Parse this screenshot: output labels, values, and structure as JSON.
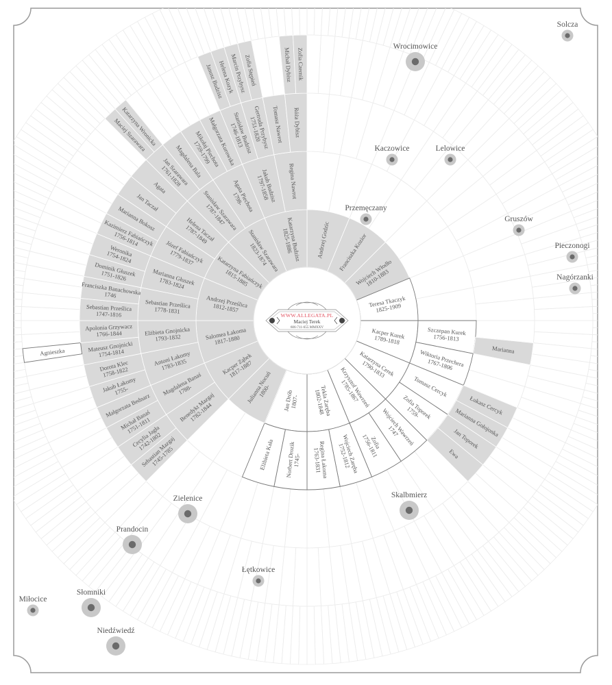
{
  "colors": {
    "gray_fill": "#d9d9d9",
    "white_fill": "#ffffff",
    "white_stroke": "#777777",
    "empty_stroke": "#ececec",
    "text": "#555555",
    "logo_red": "#e0505e",
    "place_halo": "#c8c8c8",
    "place_dot": "#6b6b6b"
  },
  "logo": {
    "url": "WWW.ALLEGATA.PL",
    "name": "Maciej Terek",
    "phone": "606-711-655 MMXXV"
  },
  "fan": {
    "ring1": [
      {
        "name": "Andrzej Godzic",
        "dates": "",
        "shade": "gray"
      },
      {
        "name": "Franciszka Kozior",
        "dates": "",
        "shade": "gray"
      },
      {
        "name": "Wojciech Włodło",
        "dates": "1810-1883",
        "shade": "gray"
      },
      {
        "name": "Teresa Tkaczyk",
        "dates": "1825-1909",
        "shade": "white"
      },
      {
        "name": "Kacper Kurek",
        "dates": "1789-1818",
        "shade": "white",
        "parents": [
          {
            "name": "Szczepan Kurek",
            "dates": "1756-1813",
            "shade": "white",
            "parents": [
              null,
              {
                "name": "Marianna",
                "dates": "",
                "shade": "gray"
              }
            ]
          },
          {
            "name": "Wiktoria Przechera",
            "dates": "1767-1806",
            "shade": "white"
          }
        ]
      },
      {
        "name": "Katarzyna Cerek",
        "dates": "1790-1833",
        "shade": "white",
        "parents": [
          {
            "name": "Tomasz Cercyk",
            "dates": "",
            "shade": "white",
            "parents": [
              {
                "name": "Łukasz Cercyk",
                "dates": "",
                "shade": "gray"
              },
              {
                "name": "Marianna Gołojonka",
                "dates": "",
                "shade": "gray"
              }
            ]
          },
          {
            "name": "Zofia Toporek",
            "dates": "1759-",
            "shade": "white",
            "parents": [
              {
                "name": "Jan Toporek",
                "dates": "",
                "shade": "gray"
              },
              {
                "name": "Ewa",
                "dates": "",
                "shade": "gray"
              }
            ]
          }
        ]
      },
      {
        "name": "Krzysztof Wawrzeń",
        "dates": "1785-1867",
        "shade": "white",
        "parents": [
          {
            "name": "Wojciech Wawrzeń",
            "dates": "1747",
            "shade": "white"
          },
          {
            "name": "Zofia",
            "dates": "1756-1811",
            "shade": "white"
          }
        ]
      },
      {
        "name": "Tekla Zaręba",
        "dates": "1802-1848",
        "shade": "white",
        "parents": [
          {
            "name": "Wojciech Zaręba",
            "dates": "1752-1812",
            "shade": "white"
          },
          {
            "name": "Regina Łakoma",
            "dates": "1763-1831",
            "shade": "white"
          }
        ]
      },
      {
        "name": "Jan Drób",
        "dates": "1807-",
        "shade": "white",
        "parents": [
          {
            "name": "Norbert Drozik",
            "dates": "1745-",
            "shade": "white"
          },
          {
            "name": "Elżbieta Kała",
            "dates": "",
            "shade": "white"
          }
        ]
      },
      {
        "name": "Julianna Nocuń",
        "dates": "1800-",
        "shade": "gray"
      },
      {
        "name": "Kacper Ząbek",
        "dates": "1817-1887",
        "shade": "gray",
        "parents": [
          {
            "name": "Benedykt Mazgaj",
            "dates": "1782-1844",
            "shade": "gray",
            "parents": [
              {
                "name": "Sebastian Mazgaj",
                "dates": "1745-1785",
                "shade": "gray"
              },
              {
                "name": "Cecylia Jagła",
                "dates": "1742-1802",
                "shade": "gray"
              }
            ]
          },
          {
            "name": "Magdalena Banaś",
            "dates": "1788-",
            "shade": "gray",
            "parents": [
              {
                "name": "Michał Banaś",
                "dates": "1751-1811",
                "shade": "gray"
              },
              {
                "name": "Małgorzata Bednarz",
                "dates": "",
                "shade": "gray"
              }
            ]
          }
        ]
      },
      {
        "name": "Salomea Łakoma",
        "dates": "1817-1880",
        "shade": "gray",
        "parents": [
          {
            "name": "Antoni Łakomy",
            "dates": "1783-1835",
            "shade": "gray",
            "parents": [
              {
                "name": "Jakub Łakomy",
                "dates": "1755-",
                "shade": "gray"
              },
              {
                "name": "Dorota Klec",
                "dates": "1758-1822",
                "shade": "gray"
              }
            ]
          },
          {
            "name": "Elżbieta Gnojnicka",
            "dates": "1793-1832",
            "shade": "gray",
            "parents": [
              {
                "name": "Mateusz Gnojnicki",
                "dates": "1754-1814",
                "shade": "gray",
                "parents": [
                  null,
                  {
                    "name": "Agnieszka",
                    "dates": "",
                    "shade": "white"
                  }
                ]
              },
              {
                "name": "Apolonia Grzywacz",
                "dates": "1766-1844",
                "shade": "gray"
              }
            ]
          }
        ]
      },
      {
        "name": "Andrzej Prześlica",
        "dates": "1812-1857",
        "shade": "gray",
        "parents": [
          {
            "name": "Sebastian Prześlica",
            "dates": "1778-1831",
            "shade": "gray",
            "parents": [
              {
                "name": "Sebastian Prześlica",
                "dates": "1747-1816",
                "shade": "gray"
              },
              {
                "name": "Franciszka Banachowska",
                "dates": "1746",
                "shade": "gray"
              }
            ]
          },
          {
            "name": "Marianna Głuszek",
            "dates": "1783-1824",
            "shade": "gray",
            "parents": [
              {
                "name": "Dominik Głuszek",
                "dates": "1751-1826",
                "shade": "gray"
              },
              {
                "name": "Weronika",
                "dates": "1754-1824",
                "shade": "gray"
              }
            ]
          }
        ]
      },
      {
        "name": "Katarzyna Fabiańczyk",
        "dates": "1815-1885",
        "shade": "gray",
        "parents": [
          {
            "name": "Józef Fabiańczyk",
            "dates": "1779-1837",
            "shade": "gray",
            "parents": [
              {
                "name": "Kazimierz Fabiańczyk",
                "dates": "1756-1814",
                "shade": "gray"
              },
              {
                "name": "Marianna Bokosz",
                "dates": "",
                "shade": "gray"
              }
            ]
          },
          {
            "name": "Helena Taczał",
            "dates": "1787-1849",
            "shade": "gray",
            "parents": [
              {
                "name": "Jan Taczał",
                "dates": "",
                "shade": "gray"
              },
              {
                "name": "Agata",
                "dates": "",
                "shade": "gray"
              }
            ]
          }
        ]
      },
      {
        "name": "Stanisław Szarawara",
        "dates": "1823-1874",
        "shade": "gray",
        "parents": [
          {
            "name": "Stanisław Szarawara",
            "dates": "1787-1847",
            "shade": "gray",
            "parents": [
              {
                "name": "Jan Szarawara",
                "dates": "1761-1828",
                "shade": "gray",
                "parents": [
                  {
                    "name": "Maciej Szarawara",
                    "dates": "",
                    "shade": "gray"
                  },
                  {
                    "name": "Katarzyna Wronicka",
                    "dates": "",
                    "shade": "gray"
                  }
                ]
              },
              {
                "name": "Magdalena Bala",
                "dates": "",
                "shade": "gray"
              }
            ]
          },
          {
            "name": "Agata Piechota",
            "dates": "1798-",
            "shade": "gray",
            "parents": [
              {
                "name": "Mikołaj Piechota",
                "dates": "1759-1799",
                "shade": "gray"
              },
              {
                "name": "Małgorzata Kurowska",
                "dates": "",
                "shade": "gray"
              }
            ]
          }
        ]
      },
      {
        "name": "Katarzyna Budzisz",
        "dates": "1825-1886",
        "shade": "gray",
        "parents": [
          {
            "name": "Jakub Budzisz",
            "dates": "1797-1858",
            "shade": "gray",
            "parents": [
              {
                "name": "Stanisław Budzisz",
                "dates": "1746-1813",
                "shade": "gray",
                "parents": [
                  {
                    "name": "Janusz Budzisz",
                    "dates": "",
                    "shade": "gray"
                  },
                  {
                    "name": "Helena Kozyk",
                    "dates": "",
                    "shade": "gray"
                  }
                ]
              },
              {
                "name": "Gertruda Przybysz",
                "dates": "1751-1820",
                "shade": "gray",
                "parents": [
                  {
                    "name": "Marcin Przybysz",
                    "dates": "",
                    "shade": "gray"
                  },
                  {
                    "name": "Zofia Stępień",
                    "dates": "",
                    "shade": "gray"
                  }
                ]
              }
            ]
          },
          {
            "name": "Regina Nawrot",
            "dates": "",
            "shade": "gray",
            "parents": [
              {
                "name": "Tomasz Nawrot",
                "dates": "",
                "shade": "gray"
              },
              {
                "name": "Róża Dybisz",
                "dates": "",
                "shade": "gray",
                "parents": [
                  {
                    "name": "Michał Dybisz",
                    "dates": "",
                    "shade": "gray"
                  },
                  {
                    "name": "Zofia Czernik",
                    "dates": "",
                    "shade": "gray"
                  }
                ]
              }
            ]
          }
        ]
      }
    ]
  },
  "places": [
    {
      "name": "Solcza",
      "size": "small"
    },
    {
      "name": "Wrocimowice",
      "size": "large"
    },
    {
      "name": "Kaczowice",
      "size": "small"
    },
    {
      "name": "Lelowice",
      "size": "small"
    },
    {
      "name": "Przemęczany",
      "size": "small"
    },
    {
      "name": "Gruszów",
      "size": "small"
    },
    {
      "name": "Pieczonogi",
      "size": "small"
    },
    {
      "name": "Nagórzanki",
      "size": "small"
    },
    {
      "name": "Skalbmierz",
      "size": "large"
    },
    {
      "name": "Zielenice",
      "size": "large"
    },
    {
      "name": "Prandocin",
      "size": "large"
    },
    {
      "name": "Łętkowice",
      "size": "small"
    },
    {
      "name": "Miłocice",
      "size": "small"
    },
    {
      "name": "Słomniki",
      "size": "large"
    },
    {
      "name": "Niedźwiedź",
      "size": "large"
    }
  ]
}
